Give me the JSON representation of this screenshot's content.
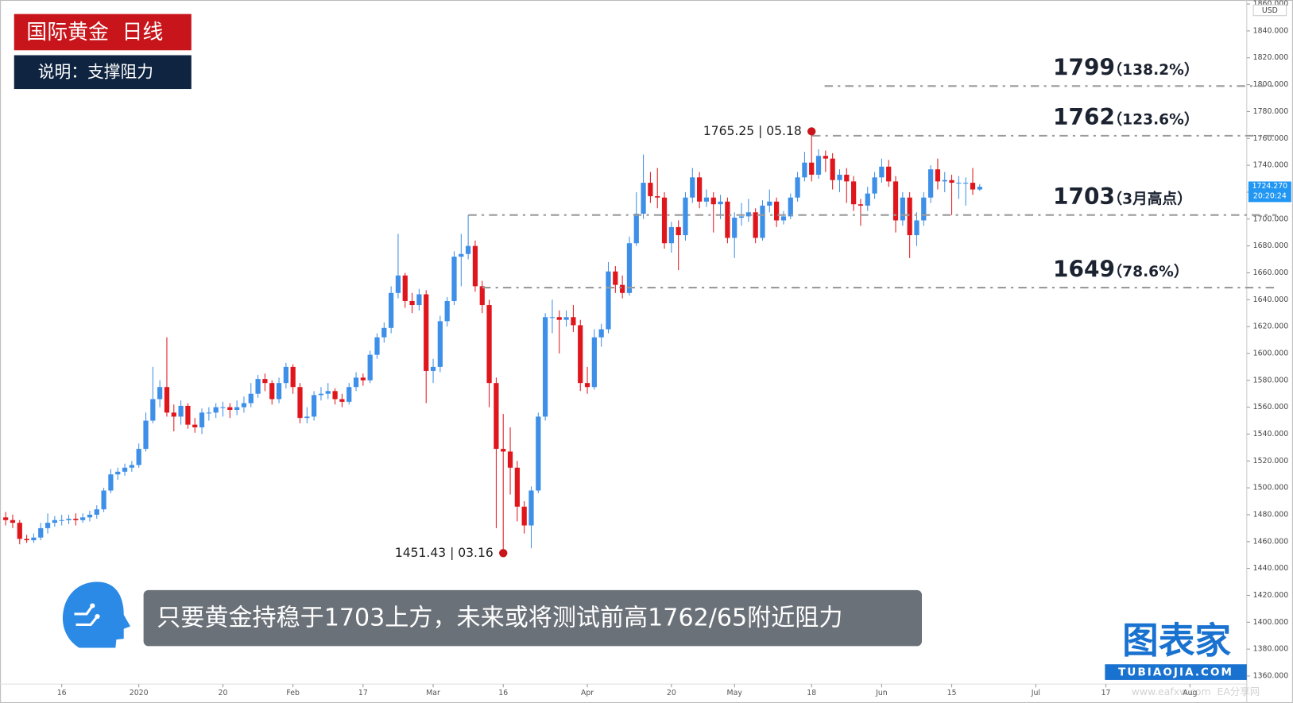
{
  "header": {
    "title": "国际黄金  日线",
    "subtitle": "说明：支撑阻力"
  },
  "caption": "只要黄金持稳于1703上方，未来或将测试前高1762/65附近阻力",
  "logo": {
    "name": "图表家",
    "url": "TUBIAOJIA.COM"
  },
  "watermark": "www.eafxw.com  EA分享网",
  "chart_data": {
    "type": "candlestick",
    "up_color": "#3d8fe8",
    "down_color": "#e0161d",
    "x": [
      -8,
      -7,
      -6,
      -5,
      -4,
      -3,
      -2,
      -1,
      0,
      1,
      2,
      3,
      4,
      5,
      6,
      7,
      8,
      9,
      10,
      11,
      12,
      13,
      14,
      15,
      16,
      17,
      18,
      19,
      20,
      21,
      22,
      23,
      24,
      25,
      26,
      27,
      28,
      29,
      30,
      31,
      32,
      33,
      34,
      35,
      36,
      37,
      38,
      39,
      40,
      41,
      42,
      43,
      44,
      45,
      46,
      47,
      48,
      49,
      50,
      51,
      52,
      53,
      54,
      55,
      56,
      57,
      58,
      59,
      60,
      61,
      62,
      63,
      64,
      65,
      66,
      67,
      68,
      69,
      70,
      71,
      72,
      73,
      74,
      75,
      76,
      77,
      78,
      79,
      80,
      81,
      82,
      83,
      84,
      85,
      86,
      87,
      88,
      89,
      90,
      91,
      92,
      93,
      94,
      95,
      96,
      97,
      98,
      99,
      100,
      101,
      102,
      103,
      104,
      105,
      106,
      107,
      108,
      109,
      110,
      111,
      112,
      113,
      114,
      115,
      116,
      117,
      118,
      119,
      120,
      121,
      122,
      123,
      124,
      125,
      126,
      127,
      128,
      129,
      130,
      131
    ],
    "open": [
      1478,
      1476,
      1474,
      1462,
      1461,
      1463,
      1470,
      1474,
      1476,
      1476,
      1477,
      1476,
      1478,
      1480,
      1484,
      1498,
      1510,
      1512,
      1515,
      1517,
      1529,
      1550,
      1566,
      1575,
      1556,
      1553,
      1561,
      1547,
      1545,
      1556,
      1556,
      1560,
      1560,
      1558,
      1560,
      1563,
      1570,
      1581,
      1578,
      1566,
      1578,
      1590,
      1575,
      1552,
      1553,
      1569,
      1570,
      1572,
      1566,
      1564,
      1575,
      1582,
      1580,
      1599,
      1612,
      1619,
      1645,
      1658,
      1639,
      1636,
      1644,
      1587,
      1590,
      1624,
      1639,
      1672,
      1674,
      1680,
      1650,
      1636,
      1578,
      1529,
      1527,
      1515,
      1486,
      1472,
      1498,
      1553,
      1627,
      1627,
      1625,
      1627,
      1621,
      1578,
      1575,
      1612,
      1618,
      1661,
      1651,
      1645,
      1682,
      1704,
      1727,
      1717,
      1716,
      1682,
      1694,
      1688,
      1716,
      1731,
      1713,
      1716,
      1711,
      1713,
      1686,
      1701,
      1702,
      1705,
      1686,
      1710,
      1713,
      1699,
      1702,
      1716,
      1731,
      1742,
      1733,
      1747,
      1745,
      1729,
      1733,
      1728,
      1711,
      1710,
      1719,
      1731,
      1739,
      1728,
      1699,
      1716,
      1688,
      1699,
      1716,
      1737,
      1728,
      1729,
      1727,
      1727,
      1727,
      1722
    ],
    "high": [
      1482,
      1480,
      1476,
      1465,
      1466,
      1474,
      1481,
      1479,
      1480,
      1480,
      1481,
      1481,
      1483,
      1487,
      1500,
      1514,
      1515,
      1518,
      1520,
      1533,
      1556,
      1590,
      1580,
      1612,
      1562,
      1565,
      1563,
      1552,
      1559,
      1560,
      1563,
      1564,
      1563,
      1565,
      1568,
      1578,
      1584,
      1585,
      1580,
      1582,
      1593,
      1592,
      1578,
      1560,
      1572,
      1575,
      1578,
      1574,
      1570,
      1578,
      1586,
      1585,
      1602,
      1615,
      1623,
      1650,
      1689,
      1660,
      1645,
      1648,
      1647,
      1596,
      1628,
      1642,
      1676,
      1689,
      1703,
      1684,
      1654,
      1640,
      1582,
      1555,
      1545,
      1520,
      1490,
      1501,
      1556,
      1630,
      1640,
      1632,
      1632,
      1636,
      1625,
      1590,
      1618,
      1622,
      1668,
      1665,
      1658,
      1687,
      1720,
      1748,
      1735,
      1738,
      1720,
      1698,
      1699,
      1720,
      1738,
      1735,
      1722,
      1720,
      1718,
      1716,
      1705,
      1712,
      1715,
      1708,
      1714,
      1722,
      1716,
      1706,
      1719,
      1735,
      1750,
      1765.25,
      1752,
      1751,
      1749,
      1737,
      1738,
      1732,
      1715,
      1724,
      1735,
      1745,
      1744,
      1732,
      1720,
      1720,
      1705,
      1720,
      1740,
      1745,
      1735,
      1733,
      1732,
      1731,
      1738,
      1726
    ],
    "low": [
      1472,
      1470,
      1458,
      1459,
      1459,
      1461,
      1466,
      1471,
      1472,
      1473,
      1472,
      1474,
      1475,
      1477,
      1482,
      1496,
      1506,
      1509,
      1512,
      1515,
      1527,
      1548,
      1560,
      1553,
      1542,
      1547,
      1544,
      1541,
      1540,
      1550,
      1552,
      1553,
      1552,
      1554,
      1556,
      1560,
      1567,
      1572,
      1562,
      1563,
      1574,
      1570,
      1548,
      1548,
      1550,
      1565,
      1566,
      1562,
      1560,
      1562,
      1572,
      1576,
      1578,
      1596,
      1608,
      1615,
      1641,
      1634,
      1630,
      1632,
      1563,
      1578,
      1586,
      1620,
      1636,
      1650,
      1670,
      1646,
      1630,
      1560,
      1470,
      1451.43,
      1495,
      1475,
      1466,
      1455,
      1496,
      1550,
      1615,
      1600,
      1620,
      1616,
      1572,
      1570,
      1573,
      1605,
      1615,
      1645,
      1641,
      1643,
      1680,
      1700,
      1712,
      1708,
      1678,
      1675,
      1662,
      1684,
      1712,
      1708,
      1709,
      1690,
      1700,
      1682,
      1671,
      1695,
      1698,
      1682,
      1684,
      1705,
      1694,
      1696,
      1700,
      1713,
      1728,
      1728,
      1730,
      1735,
      1722,
      1720,
      1712,
      1706,
      1695,
      1706,
      1715,
      1727,
      1724,
      1690,
      1695,
      1671,
      1680,
      1695,
      1712,
      1722,
      1720,
      1703,
      1715,
      1710,
      1718,
      1721
    ],
    "close": [
      1476,
      1474,
      1462,
      1461,
      1463,
      1470,
      1474,
      1476,
      1476,
      1477,
      1476,
      1478,
      1480,
      1484,
      1498,
      1510,
      1512,
      1515,
      1517,
      1529,
      1550,
      1566,
      1575,
      1556,
      1553,
      1561,
      1547,
      1545,
      1556,
      1556,
      1560,
      1560,
      1558,
      1560,
      1563,
      1570,
      1581,
      1578,
      1566,
      1578,
      1590,
      1575,
      1552,
      1553,
      1569,
      1570,
      1572,
      1566,
      1564,
      1575,
      1582,
      1580,
      1599,
      1612,
      1619,
      1645,
      1658,
      1639,
      1636,
      1644,
      1587,
      1590,
      1624,
      1639,
      1672,
      1674,
      1680,
      1650,
      1636,
      1578,
      1529,
      1527,
      1515,
      1486,
      1472,
      1498,
      1553,
      1627,
      1627,
      1625,
      1627,
      1621,
      1578,
      1575,
      1612,
      1618,
      1661,
      1651,
      1645,
      1682,
      1704,
      1727,
      1717,
      1716,
      1682,
      1694,
      1688,
      1716,
      1731,
      1713,
      1716,
      1711,
      1713,
      1686,
      1701,
      1702,
      1705,
      1686,
      1710,
      1713,
      1699,
      1702,
      1716,
      1731,
      1742,
      1733,
      1747,
      1745,
      1729,
      1733,
      1728,
      1711,
      1710,
      1719,
      1731,
      1739,
      1728,
      1699,
      1716,
      1688,
      1699,
      1716,
      1737,
      1728,
      1729,
      1727,
      1727,
      1727,
      1722,
      1724
    ],
    "xlim": [
      -8.8,
      169.1
    ],
    "ylim": [
      1354,
      1863
    ],
    "xticks": [
      {
        "value": 0,
        "label": "16"
      },
      {
        "value": 11,
        "label": "2020"
      },
      {
        "value": 23,
        "label": "20"
      },
      {
        "value": 33,
        "label": "Feb"
      },
      {
        "value": 43,
        "label": "17"
      },
      {
        "value": 53,
        "label": "Mar"
      },
      {
        "value": 63,
        "label": "16"
      },
      {
        "value": 75,
        "label": "Apr"
      },
      {
        "value": 87,
        "label": "20"
      },
      {
        "value": 96,
        "label": "May"
      },
      {
        "value": 107,
        "label": "18"
      },
      {
        "value": 117,
        "label": "Jun"
      },
      {
        "value": 127,
        "label": "15"
      },
      {
        "value": 139,
        "label": "Jul"
      },
      {
        "value": 149,
        "label": "17"
      },
      {
        "value": 161,
        "label": "Aug"
      }
    ],
    "yticks": [
      {
        "value": 1360,
        "label": "1360.000"
      },
      {
        "value": 1380,
        "label": "1380.000"
      },
      {
        "value": 1400,
        "label": "1400.000"
      },
      {
        "value": 1420,
        "label": "1420.000"
      },
      {
        "value": 1440,
        "label": "1440.000"
      },
      {
        "value": 1460,
        "label": "1460.000"
      },
      {
        "value": 1480,
        "label": "1480.000"
      },
      {
        "value": 1500,
        "label": "1500.000"
      },
      {
        "value": 1520,
        "label": "1520.000"
      },
      {
        "value": 1540,
        "label": "1540.000"
      },
      {
        "value": 1560,
        "label": "1560.000"
      },
      {
        "value": 1580,
        "label": "1580.000"
      },
      {
        "value": 1600,
        "label": "1600.000"
      },
      {
        "value": 1620,
        "label": "1620.000"
      },
      {
        "value": 1640,
        "label": "1640.000"
      },
      {
        "value": 1660,
        "label": "1660.000"
      },
      {
        "value": 1680,
        "label": "1680.000"
      },
      {
        "value": 1700,
        "label": "1700.000"
      },
      {
        "value": 1720,
        "label": "1720.000"
      },
      {
        "value": 1740,
        "label": "1740.000"
      },
      {
        "value": 1760,
        "label": "1760.000"
      },
      {
        "value": 1780,
        "label": "1780.000"
      },
      {
        "value": 1800,
        "label": "1800.000"
      },
      {
        "value": 1820,
        "label": "1820.000"
      },
      {
        "value": 1840,
        "label": "1840.000"
      },
      {
        "value": 1860,
        "label": "1860.000"
      }
    ],
    "y_unit": "USD",
    "last_price": {
      "value": 1724.27,
      "label": "1724.270",
      "time": "20:20:24",
      "color": "#2196f3"
    },
    "levels": [
      {
        "value": 1799,
        "note": "（138.2%）"
      },
      {
        "value": 1762,
        "note": "（123.6%）"
      },
      {
        "value": 1703,
        "note": "（3月高点）"
      },
      {
        "value": 1649,
        "note": "（78.6%）"
      }
    ],
    "annotations": [
      {
        "text": "1765.25 | 05.18",
        "x": 107,
        "value": 1765.25
      },
      {
        "text": "1451.43 | 03.16",
        "x": 63,
        "value": 1451.43
      }
    ]
  }
}
